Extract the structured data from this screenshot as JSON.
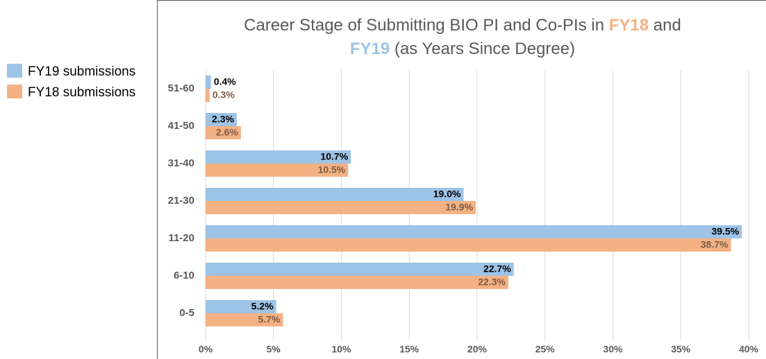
{
  "chart_data": {
    "type": "bar",
    "orientation": "horizontal",
    "title_parts": [
      {
        "text": "Career Stage of Submitting BIO PI and Co-PIs in ",
        "color": "#595959"
      },
      {
        "text": "FY18",
        "color": "#f4b183",
        "bold": true
      },
      {
        "text": " and",
        "color": "#595959"
      },
      {
        "text": "FY19",
        "color": "#9dc3e6",
        "bold": true,
        "newline": true
      },
      {
        "text": " (as Years Since Degree)",
        "color": "#595959"
      }
    ],
    "categories": [
      "0-5",
      "6-10",
      "11-20",
      "21-30",
      "31-40",
      "41-50",
      "51-60"
    ],
    "series": [
      {
        "name": "FY19 submissions",
        "color": "#9dc3e6",
        "label_color": "#000000",
        "values": [
          5.2,
          22.7,
          39.5,
          19.0,
          10.7,
          2.3,
          0.4
        ],
        "value_labels": [
          "5.2%",
          "22.7%",
          "39.5%",
          "19.0%",
          "10.7%",
          "2.3%",
          "0.4%"
        ]
      },
      {
        "name": "FY18 submissions",
        "color": "#f4b183",
        "label_color": "#7b5b45",
        "values": [
          5.7,
          22.3,
          38.7,
          19.9,
          10.5,
          2.6,
          0.3
        ],
        "value_labels": [
          "5.7%",
          "22.3%",
          "38.7%",
          "19.9%",
          "10.5%",
          "2.6%",
          "0.3%"
        ]
      }
    ],
    "xlim": [
      0,
      40
    ],
    "xticks": [
      {
        "value": 0,
        "label": "0%"
      },
      {
        "value": 5,
        "label": "5%"
      },
      {
        "value": 10,
        "label": "10%"
      },
      {
        "value": 15,
        "label": "15%"
      },
      {
        "value": 20,
        "label": "20%"
      },
      {
        "value": 25,
        "label": "25%"
      },
      {
        "value": 30,
        "label": "30%"
      },
      {
        "value": 35,
        "label": "35%"
      },
      {
        "value": 40,
        "label": "40%"
      }
    ],
    "grid": true,
    "legend": "left"
  }
}
